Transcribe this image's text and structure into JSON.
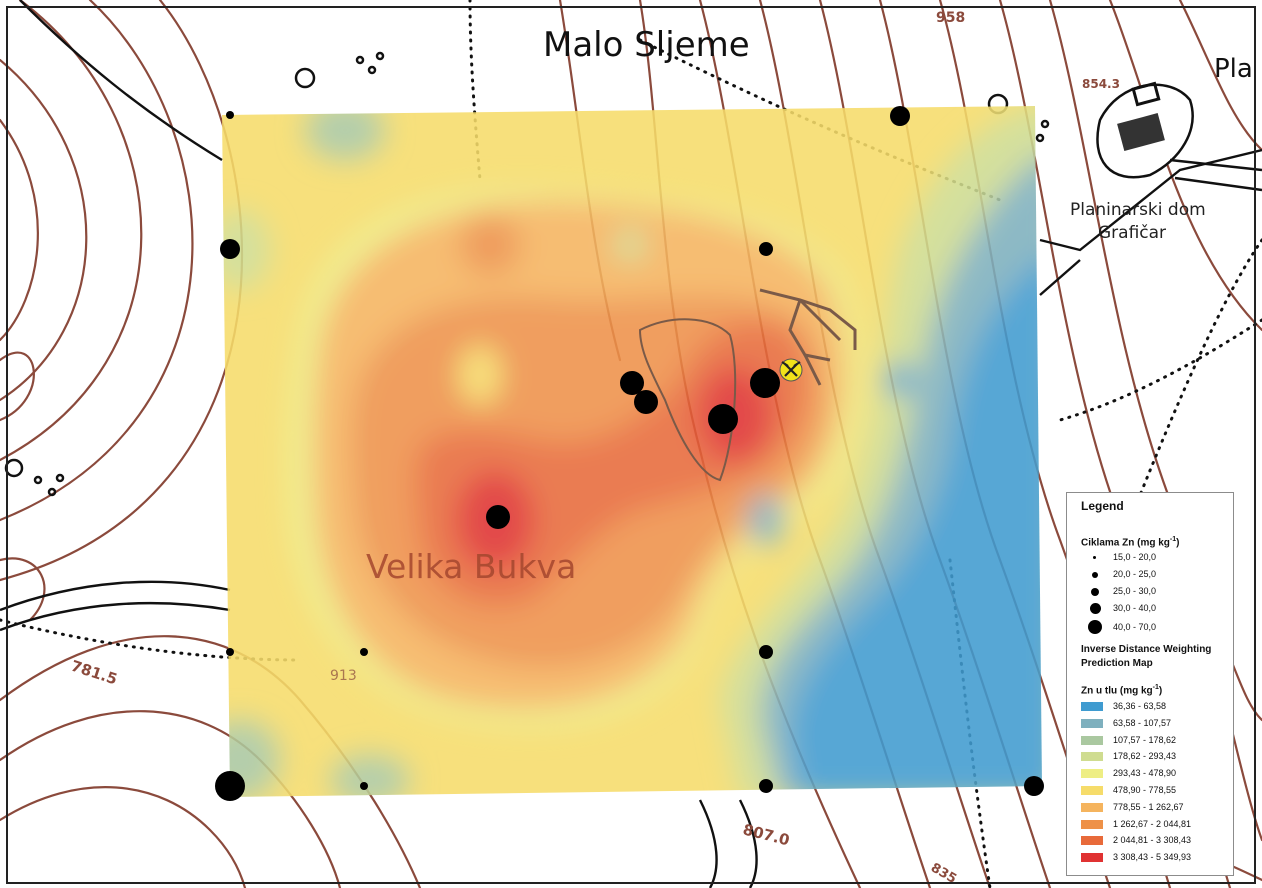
{
  "map": {
    "place_labels": {
      "malo_sljeme": "Malo Sljeme",
      "velika_bukva": "Velika Bukva",
      "pla_partial": "Pla",
      "hut_line1": "Planinarski dom",
      "hut_line2": "Grafičar"
    },
    "elevation_labels": {
      "e781": "781.5",
      "e807": "807.0",
      "e913": "913",
      "e854": "854.3",
      "e958": "958",
      "e835": "835"
    },
    "colors": {
      "contour": "#8b4a3c",
      "path_dots": "#111111",
      "sample_dot": "#000000",
      "mine_symbol": "#f2e21b"
    },
    "icons": [
      "mine-hammers-icon",
      "hut-icon"
    ]
  },
  "legend": {
    "title": "Legend",
    "points_title": "Ciklama Zn (mg kg",
    "points_sup": "-1",
    "points_close": ")",
    "point_classes": [
      "15,0 - 20,0",
      "20,0 - 25,0",
      "25,0 - 30,0",
      "30,0 - 40,0",
      "40,0 - 70,0"
    ],
    "idw_title_1": "Inverse Distance Weighting",
    "idw_title_2": "Prediction Map",
    "surface_title": "Zn u tlu (mg kg",
    "surface_sup": "-1",
    "surface_close": ")",
    "surface_classes": [
      {
        "label": "36,36 - 63,58",
        "color": "#3f9bd0"
      },
      {
        "label": "63,58 - 107,57",
        "color": "#7eb0be"
      },
      {
        "label": "107,57 - 178,62",
        "color": "#aac8a0"
      },
      {
        "label": "178,62 - 293,43",
        "color": "#cfdc90"
      },
      {
        "label": "293,43 - 478,90",
        "color": "#eeee84"
      },
      {
        "label": "478,90 - 778,55",
        "color": "#f6dc6a"
      },
      {
        "label": "778,55 - 1 262,67",
        "color": "#f5b45e"
      },
      {
        "label": "1 262,67 - 2 044,81",
        "color": "#ee9148"
      },
      {
        "label": "2 044,81 - 3 308,43",
        "color": "#e86a3a"
      },
      {
        "label": "3 308,43 - 5 349,93",
        "color": "#e03232"
      }
    ]
  }
}
